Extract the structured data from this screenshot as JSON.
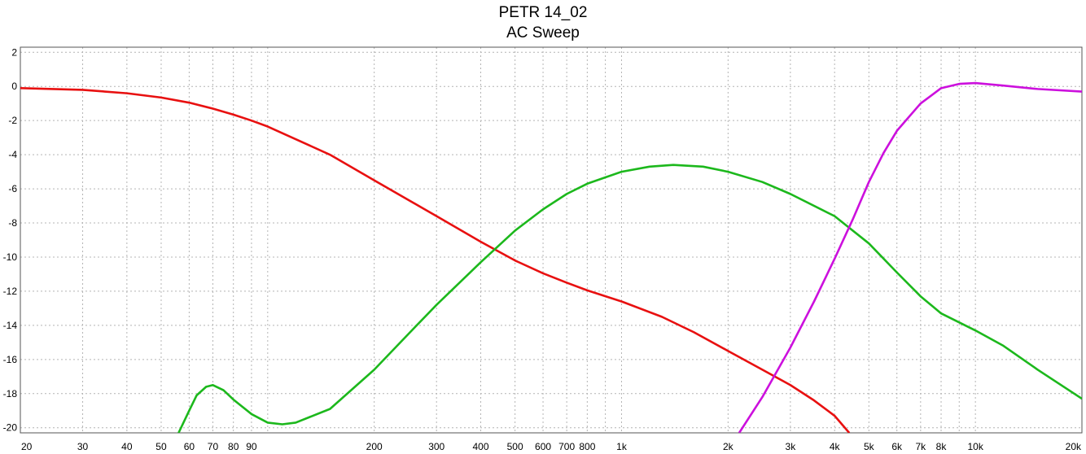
{
  "chart_data": {
    "type": "line",
    "title": "PETR 14_02",
    "subtitle": "AC Sweep",
    "xlabel": "",
    "ylabel": "",
    "x_scale": "log",
    "xlim": [
      20,
      20000
    ],
    "ylim": [
      -20.3,
      2.3
    ],
    "grid": true,
    "x_ticks": [
      {
        "value": 20,
        "label": "20"
      },
      {
        "value": 30,
        "label": "30"
      },
      {
        "value": 40,
        "label": "40"
      },
      {
        "value": 50,
        "label": "50"
      },
      {
        "value": 60,
        "label": "60"
      },
      {
        "value": 70,
        "label": "70"
      },
      {
        "value": 80,
        "label": "80"
      },
      {
        "value": 90,
        "label": "90"
      },
      {
        "value": 200,
        "label": "200"
      },
      {
        "value": 300,
        "label": "300"
      },
      {
        "value": 400,
        "label": "400"
      },
      {
        "value": 500,
        "label": "500"
      },
      {
        "value": 600,
        "label": "600"
      },
      {
        "value": 700,
        "label": "700"
      },
      {
        "value": 800,
        "label": "800"
      },
      {
        "value": 1000,
        "label": "1k"
      },
      {
        "value": 2000,
        "label": "2k"
      },
      {
        "value": 3000,
        "label": "3k"
      },
      {
        "value": 4000,
        "label": "4k"
      },
      {
        "value": 5000,
        "label": "5k"
      },
      {
        "value": 6000,
        "label": "6k"
      },
      {
        "value": 7000,
        "label": "7k"
      },
      {
        "value": 8000,
        "label": "8k"
      },
      {
        "value": 10000,
        "label": "10k"
      },
      {
        "value": 20000,
        "label": "20k"
      }
    ],
    "x_grid_values": [
      20,
      30,
      40,
      50,
      60,
      70,
      80,
      90,
      100,
      200,
      300,
      400,
      500,
      600,
      700,
      800,
      900,
      1000,
      2000,
      3000,
      4000,
      5000,
      6000,
      7000,
      8000,
      9000,
      10000,
      20000
    ],
    "y_ticks": [
      {
        "value": 2,
        "label": "2"
      },
      {
        "value": 0,
        "label": "0"
      },
      {
        "value": -2,
        "label": "-2"
      },
      {
        "value": -4,
        "label": "-4"
      },
      {
        "value": -6,
        "label": "-6"
      },
      {
        "value": -8,
        "label": "-8"
      },
      {
        "value": -10,
        "label": "-10"
      },
      {
        "value": -12,
        "label": "-12"
      },
      {
        "value": -14,
        "label": "-14"
      },
      {
        "value": -16,
        "label": "-16"
      },
      {
        "value": -18,
        "label": "-18"
      },
      {
        "value": -20,
        "label": "-20"
      }
    ],
    "series": [
      {
        "color": "#e81010",
        "points": [
          [
            20,
            -0.1
          ],
          [
            30,
            -0.2
          ],
          [
            40,
            -0.4
          ],
          [
            50,
            -0.65
          ],
          [
            60,
            -0.95
          ],
          [
            70,
            -1.3
          ],
          [
            80,
            -1.65
          ],
          [
            90,
            -2.0
          ],
          [
            100,
            -2.35
          ],
          [
            150,
            -4.0
          ],
          [
            200,
            -5.5
          ],
          [
            300,
            -7.6
          ],
          [
            400,
            -9.1
          ],
          [
            500,
            -10.2
          ],
          [
            600,
            -10.95
          ],
          [
            700,
            -11.5
          ],
          [
            800,
            -11.95
          ],
          [
            1000,
            -12.6
          ],
          [
            1300,
            -13.5
          ],
          [
            1600,
            -14.4
          ],
          [
            2000,
            -15.5
          ],
          [
            2500,
            -16.6
          ],
          [
            3000,
            -17.5
          ],
          [
            3500,
            -18.4
          ],
          [
            4000,
            -19.3
          ],
          [
            4400,
            -20.3
          ]
        ]
      },
      {
        "color": "#1cb81c",
        "points": [
          [
            56,
            -20.3
          ],
          [
            60,
            -19.0
          ],
          [
            63,
            -18.1
          ],
          [
            67,
            -17.6
          ],
          [
            70,
            -17.5
          ],
          [
            75,
            -17.8
          ],
          [
            80,
            -18.35
          ],
          [
            90,
            -19.2
          ],
          [
            100,
            -19.7
          ],
          [
            110,
            -19.8
          ],
          [
            120,
            -19.7
          ],
          [
            150,
            -18.9
          ],
          [
            200,
            -16.6
          ],
          [
            250,
            -14.5
          ],
          [
            300,
            -12.8
          ],
          [
            400,
            -10.3
          ],
          [
            500,
            -8.45
          ],
          [
            600,
            -7.2
          ],
          [
            700,
            -6.3
          ],
          [
            800,
            -5.7
          ],
          [
            1000,
            -5.0
          ],
          [
            1200,
            -4.7
          ],
          [
            1400,
            -4.6
          ],
          [
            1700,
            -4.7
          ],
          [
            2000,
            -5.0
          ],
          [
            2500,
            -5.6
          ],
          [
            3000,
            -6.3
          ],
          [
            4000,
            -7.6
          ],
          [
            5000,
            -9.2
          ],
          [
            6000,
            -10.9
          ],
          [
            7000,
            -12.3
          ],
          [
            8000,
            -13.3
          ],
          [
            10000,
            -14.3
          ],
          [
            12000,
            -15.2
          ],
          [
            15000,
            -16.6
          ],
          [
            20000,
            -18.3
          ]
        ]
      },
      {
        "color": "#cc10dd",
        "points": [
          [
            2150,
            -20.3
          ],
          [
            2500,
            -18.2
          ],
          [
            3000,
            -15.3
          ],
          [
            3500,
            -12.6
          ],
          [
            4000,
            -10.1
          ],
          [
            4500,
            -7.8
          ],
          [
            5000,
            -5.6
          ],
          [
            5500,
            -3.9
          ],
          [
            6000,
            -2.6
          ],
          [
            7000,
            -1.0
          ],
          [
            8000,
            -0.1
          ],
          [
            9000,
            0.15
          ],
          [
            10000,
            0.2
          ],
          [
            12000,
            0.05
          ],
          [
            15000,
            -0.15
          ],
          [
            20000,
            -0.3
          ]
        ]
      }
    ]
  }
}
